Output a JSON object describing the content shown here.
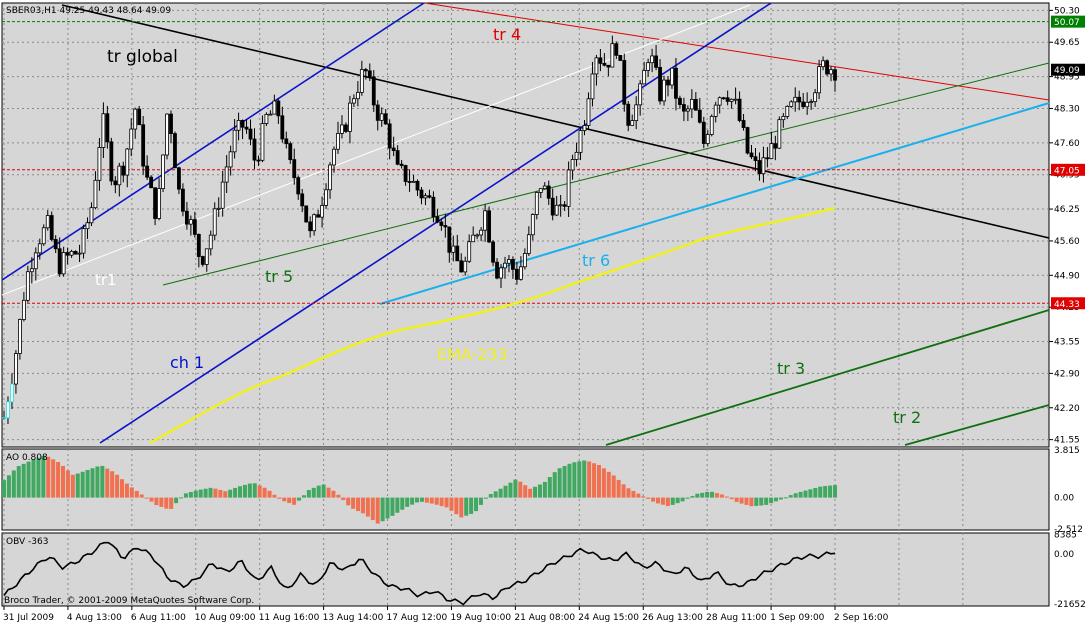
{
  "chart_data": {
    "type": "candlestick",
    "symbol_header": "SBER03,H1  49.25 49.43 48.64 49.09",
    "price_axis": {
      "min": 41.4,
      "max": 50.45,
      "ticks": [
        "50.30",
        "49.65",
        "48.95",
        "48.30",
        "47.60",
        "46.95",
        "46.25",
        "45.60",
        "44.90",
        "44.25",
        "43.55",
        "42.90",
        "42.20",
        "41.55"
      ]
    },
    "price_tags": [
      {
        "label": "50.07",
        "value": 50.07,
        "color": "#008000"
      },
      {
        "label": "49.09",
        "value": 49.09,
        "color": "#000000"
      },
      {
        "label": "47.05",
        "value": 47.05,
        "color": "#e00000"
      },
      {
        "label": "44.33",
        "value": 44.33,
        "color": "#e00000"
      }
    ],
    "time_axis": [
      "31 Jul 2009",
      "4 Aug 13:00",
      "6 Aug 11:00",
      "10 Aug 09:00",
      "11 Aug 16:00",
      "13 Aug 14:00",
      "17 Aug 12:00",
      "19 Aug 10:00",
      "21 Aug 08:00",
      "24 Aug 15:00",
      "26 Aug 13:00",
      "28 Aug 11:00",
      "1 Sep 09:00",
      "2 Sep 16:00"
    ],
    "close_path": [
      42.0,
      43.2,
      44.8,
      45.6,
      45.9,
      45.1,
      45.3,
      45.4,
      46.3,
      48.1,
      46.8,
      47.2,
      48.3,
      46.9,
      46.1,
      48.4,
      46.6,
      46.0,
      45.2,
      45.8,
      46.8,
      47.7,
      48.0,
      47.2,
      48.1,
      48.3,
      47.2,
      46.7,
      45.7,
      46.4,
      47.4,
      47.8,
      48.6,
      49.1,
      48.3,
      47.9,
      47.0,
      46.9,
      46.6,
      46.4,
      46.1,
      45.3,
      45.0,
      45.7,
      46.2,
      45.0,
      45.2,
      44.9,
      45.6,
      46.8,
      46.4,
      46.1,
      47.3,
      48.0,
      49.5,
      49.2,
      49.6,
      48.1,
      48.4,
      49.5,
      48.6,
      49.0,
      48.1,
      48.4,
      47.6,
      48.5,
      48.7,
      48.3,
      47.4,
      47.0,
      47.4,
      47.9,
      48.3,
      48.5,
      48.7,
      49.2,
      49.1
    ],
    "indicators": {
      "ao": {
        "label": "AO 0.808",
        "ticks": [
          "3.815",
          "0.00",
          "-2.512"
        ],
        "min": -2.6,
        "max": 3.9
      },
      "obv": {
        "label": "OBV -363",
        "ticks": [
          "8385",
          "0.00",
          "-21652"
        ],
        "min": -22500,
        "max": 9000
      }
    },
    "annotations": [
      {
        "id": "tr-global",
        "label": "tr global",
        "color": "#000000"
      },
      {
        "id": "tr1",
        "label": "tr1",
        "color": "#ffffff"
      },
      {
        "id": "tr2",
        "label": "tr 2",
        "color": "#107010"
      },
      {
        "id": "tr3",
        "label": "tr 3",
        "color": "#107010"
      },
      {
        "id": "tr4",
        "label": "tr 4",
        "color": "#e00000"
      },
      {
        "id": "tr5",
        "label": "tr 5",
        "color": "#107010"
      },
      {
        "id": "tr6",
        "label": "tr 6",
        "color": "#1ab0ee"
      },
      {
        "id": "ch1",
        "label": "ch 1",
        "color": "#0010d0"
      },
      {
        "id": "ema",
        "label": "EMA-233",
        "color": "#f0f020"
      }
    ],
    "copyright": "Broco Trader, © 2001-2009 MetaQuotes Software Corp."
  }
}
